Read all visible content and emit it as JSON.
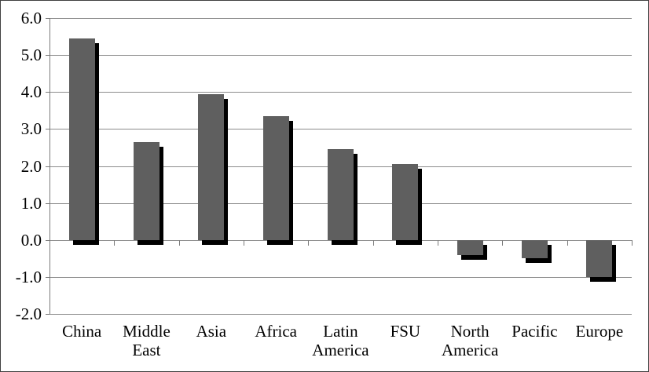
{
  "chart_data": {
    "type": "bar",
    "title": "",
    "xlabel": "",
    "ylabel": "",
    "categories": [
      "China",
      "Middle East",
      "Asia",
      "Africa",
      "Latin America",
      "FSU",
      "North America",
      "Pacific",
      "Europe"
    ],
    "values": [
      5.45,
      2.65,
      3.95,
      3.35,
      2.45,
      2.05,
      -0.4,
      -0.5,
      -1.0
    ],
    "ylim": [
      -2.0,
      6.0
    ],
    "ytick_step": 1.0,
    "ytick_labels": [
      "6.0",
      "5.0",
      "4.0",
      "3.0",
      "2.0",
      "1.0",
      "0.0",
      "-1.0",
      "-2.0"
    ],
    "grid": "horizontal-solid",
    "legend": "none",
    "bar_style": "solid-with-black-drop-shadow-offset-bottom-right",
    "colors": {
      "bar": "#5f5f5f",
      "bar_shadow": "#000000",
      "gridline": "#8c8c8c",
      "axis": "#7a7a7a",
      "tick": "#7a7a7a",
      "text": "#000000",
      "background": "#ffffff",
      "border": "#404040"
    }
  }
}
